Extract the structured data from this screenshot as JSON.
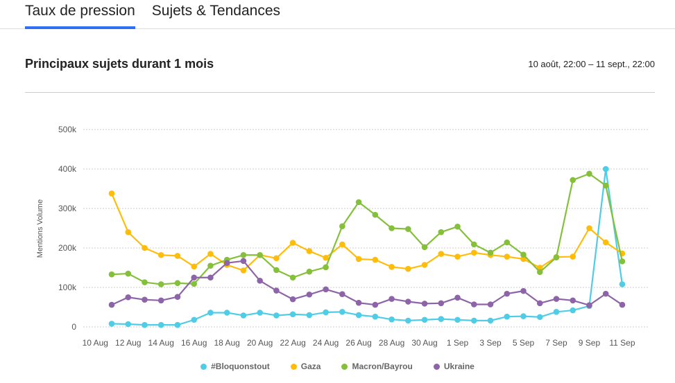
{
  "tabs": [
    {
      "label": "Taux de pression",
      "active": true
    },
    {
      "label": "Sujets & Tendances",
      "active": false
    }
  ],
  "header": {
    "title": "Principaux sujets durant 1 mois",
    "range": "10 août, 22:00 – 11 sept., 22:00"
  },
  "chart_data": {
    "type": "line",
    "ylabel": "Mentions Volume",
    "ylim": [
      0,
      500000
    ],
    "y_ticks": [
      "0",
      "100k",
      "200k",
      "300k",
      "400k",
      "500k"
    ],
    "x_tick_labels": [
      "10 Aug",
      "12 Aug",
      "14 Aug",
      "16 Aug",
      "18 Aug",
      "20 Aug",
      "22 Aug",
      "24 Aug",
      "26 Aug",
      "28 Aug",
      "30 Aug",
      "1 Sep",
      "3 Sep",
      "5 Sep",
      "7 Sep",
      "9 Sep",
      "11 Sep"
    ],
    "x": [
      "11 Aug",
      "12 Aug",
      "13 Aug",
      "14 Aug",
      "15 Aug",
      "16 Aug",
      "17 Aug",
      "18 Aug",
      "19 Aug",
      "20 Aug",
      "21 Aug",
      "22 Aug",
      "23 Aug",
      "24 Aug",
      "25 Aug",
      "26 Aug",
      "27 Aug",
      "28 Aug",
      "29 Aug",
      "30 Aug",
      "31 Aug",
      "1 Sep",
      "2 Sep",
      "3 Sep",
      "4 Sep",
      "5 Sep",
      "6 Sep",
      "7 Sep",
      "8 Sep",
      "9 Sep",
      "10 Sep",
      "11 Sep"
    ],
    "grid": true,
    "legend_position": "bottom",
    "series": [
      {
        "name": "#Bloquonstout",
        "color": "#4fcce6",
        "values": [
          8000,
          7000,
          5000,
          5000,
          5000,
          18000,
          36000,
          36000,
          29000,
          36000,
          29000,
          32000,
          30000,
          37000,
          38000,
          30000,
          26000,
          19000,
          16000,
          18000,
          20000,
          18000,
          16000,
          16000,
          26000,
          27000,
          25000,
          38000,
          42000,
          53000,
          400000,
          108000
        ]
      },
      {
        "name": "Gaza",
        "color": "#ffbd0a",
        "values": [
          338000,
          240000,
          200000,
          182000,
          180000,
          153000,
          185000,
          157000,
          143000,
          182000,
          174000,
          213000,
          192000,
          175000,
          209000,
          172000,
          170000,
          152000,
          147000,
          157000,
          185000,
          178000,
          188000,
          182000,
          178000,
          172000,
          150000,
          177000,
          178000,
          250000,
          214000,
          186000
        ]
      },
      {
        "name": "Macron/Bayrou",
        "color": "#84c03a",
        "values": [
          133000,
          135000,
          113000,
          108000,
          111000,
          109000,
          155000,
          170000,
          182000,
          182000,
          144000,
          125000,
          140000,
          151000,
          255000,
          316000,
          284000,
          250000,
          248000,
          202000,
          240000,
          254000,
          209000,
          188000,
          214000,
          183000,
          139000,
          176000,
          372000,
          388000,
          358000,
          166000
        ]
      },
      {
        "name": "Ukraine",
        "color": "#8e64a8",
        "values": [
          56000,
          75000,
          69000,
          67000,
          76000,
          125000,
          125000,
          162000,
          167000,
          117000,
          92000,
          70000,
          82000,
          95000,
          83000,
          61000,
          56000,
          71000,
          64000,
          59000,
          60000,
          74000,
          57000,
          57000,
          84000,
          91000,
          60000,
          71000,
          67000,
          55000,
          84000,
          56000
        ]
      }
    ]
  }
}
